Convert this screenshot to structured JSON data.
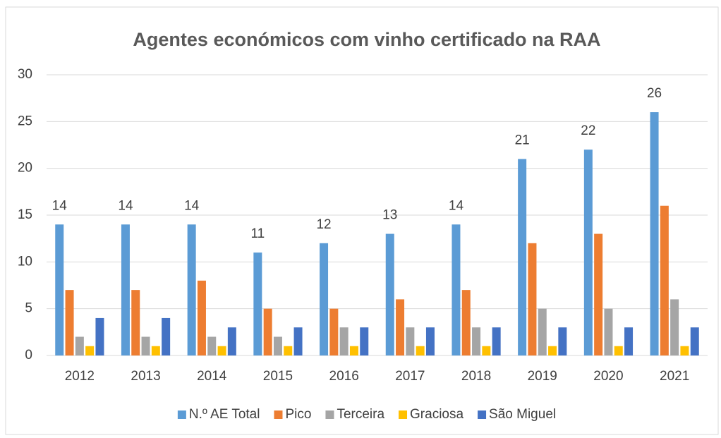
{
  "chart_data": {
    "type": "bar",
    "title": "Agentes económicos com vinho certificado na RAA",
    "categories": [
      "2012",
      "2013",
      "2014",
      "2015",
      "2016",
      "2017",
      "2018",
      "2019",
      "2020",
      "2021"
    ],
    "series": [
      {
        "name": "N.º AE Total",
        "color": "#5b9bd5",
        "values": [
          14,
          14,
          14,
          11,
          12,
          13,
          14,
          21,
          22,
          26
        ],
        "data_labels": true
      },
      {
        "name": "Pico",
        "color": "#ed7d31",
        "values": [
          7,
          7,
          8,
          5,
          5,
          6,
          7,
          12,
          13,
          16
        ]
      },
      {
        "name": "Terceira",
        "color": "#a5a5a5",
        "values": [
          2,
          2,
          2,
          2,
          3,
          3,
          3,
          5,
          5,
          6
        ]
      },
      {
        "name": "Graciosa",
        "color": "#ffc000",
        "values": [
          1,
          1,
          1,
          1,
          1,
          1,
          1,
          1,
          1,
          1
        ]
      },
      {
        "name": "São Miguel",
        "color": "#4472c4",
        "values": [
          4,
          4,
          3,
          3,
          3,
          3,
          3,
          3,
          3,
          3
        ]
      }
    ],
    "ylim": [
      0,
      30
    ],
    "yticks": [
      0,
      5,
      10,
      15,
      20,
      25,
      30
    ],
    "grid": true,
    "legend": "bottom"
  }
}
